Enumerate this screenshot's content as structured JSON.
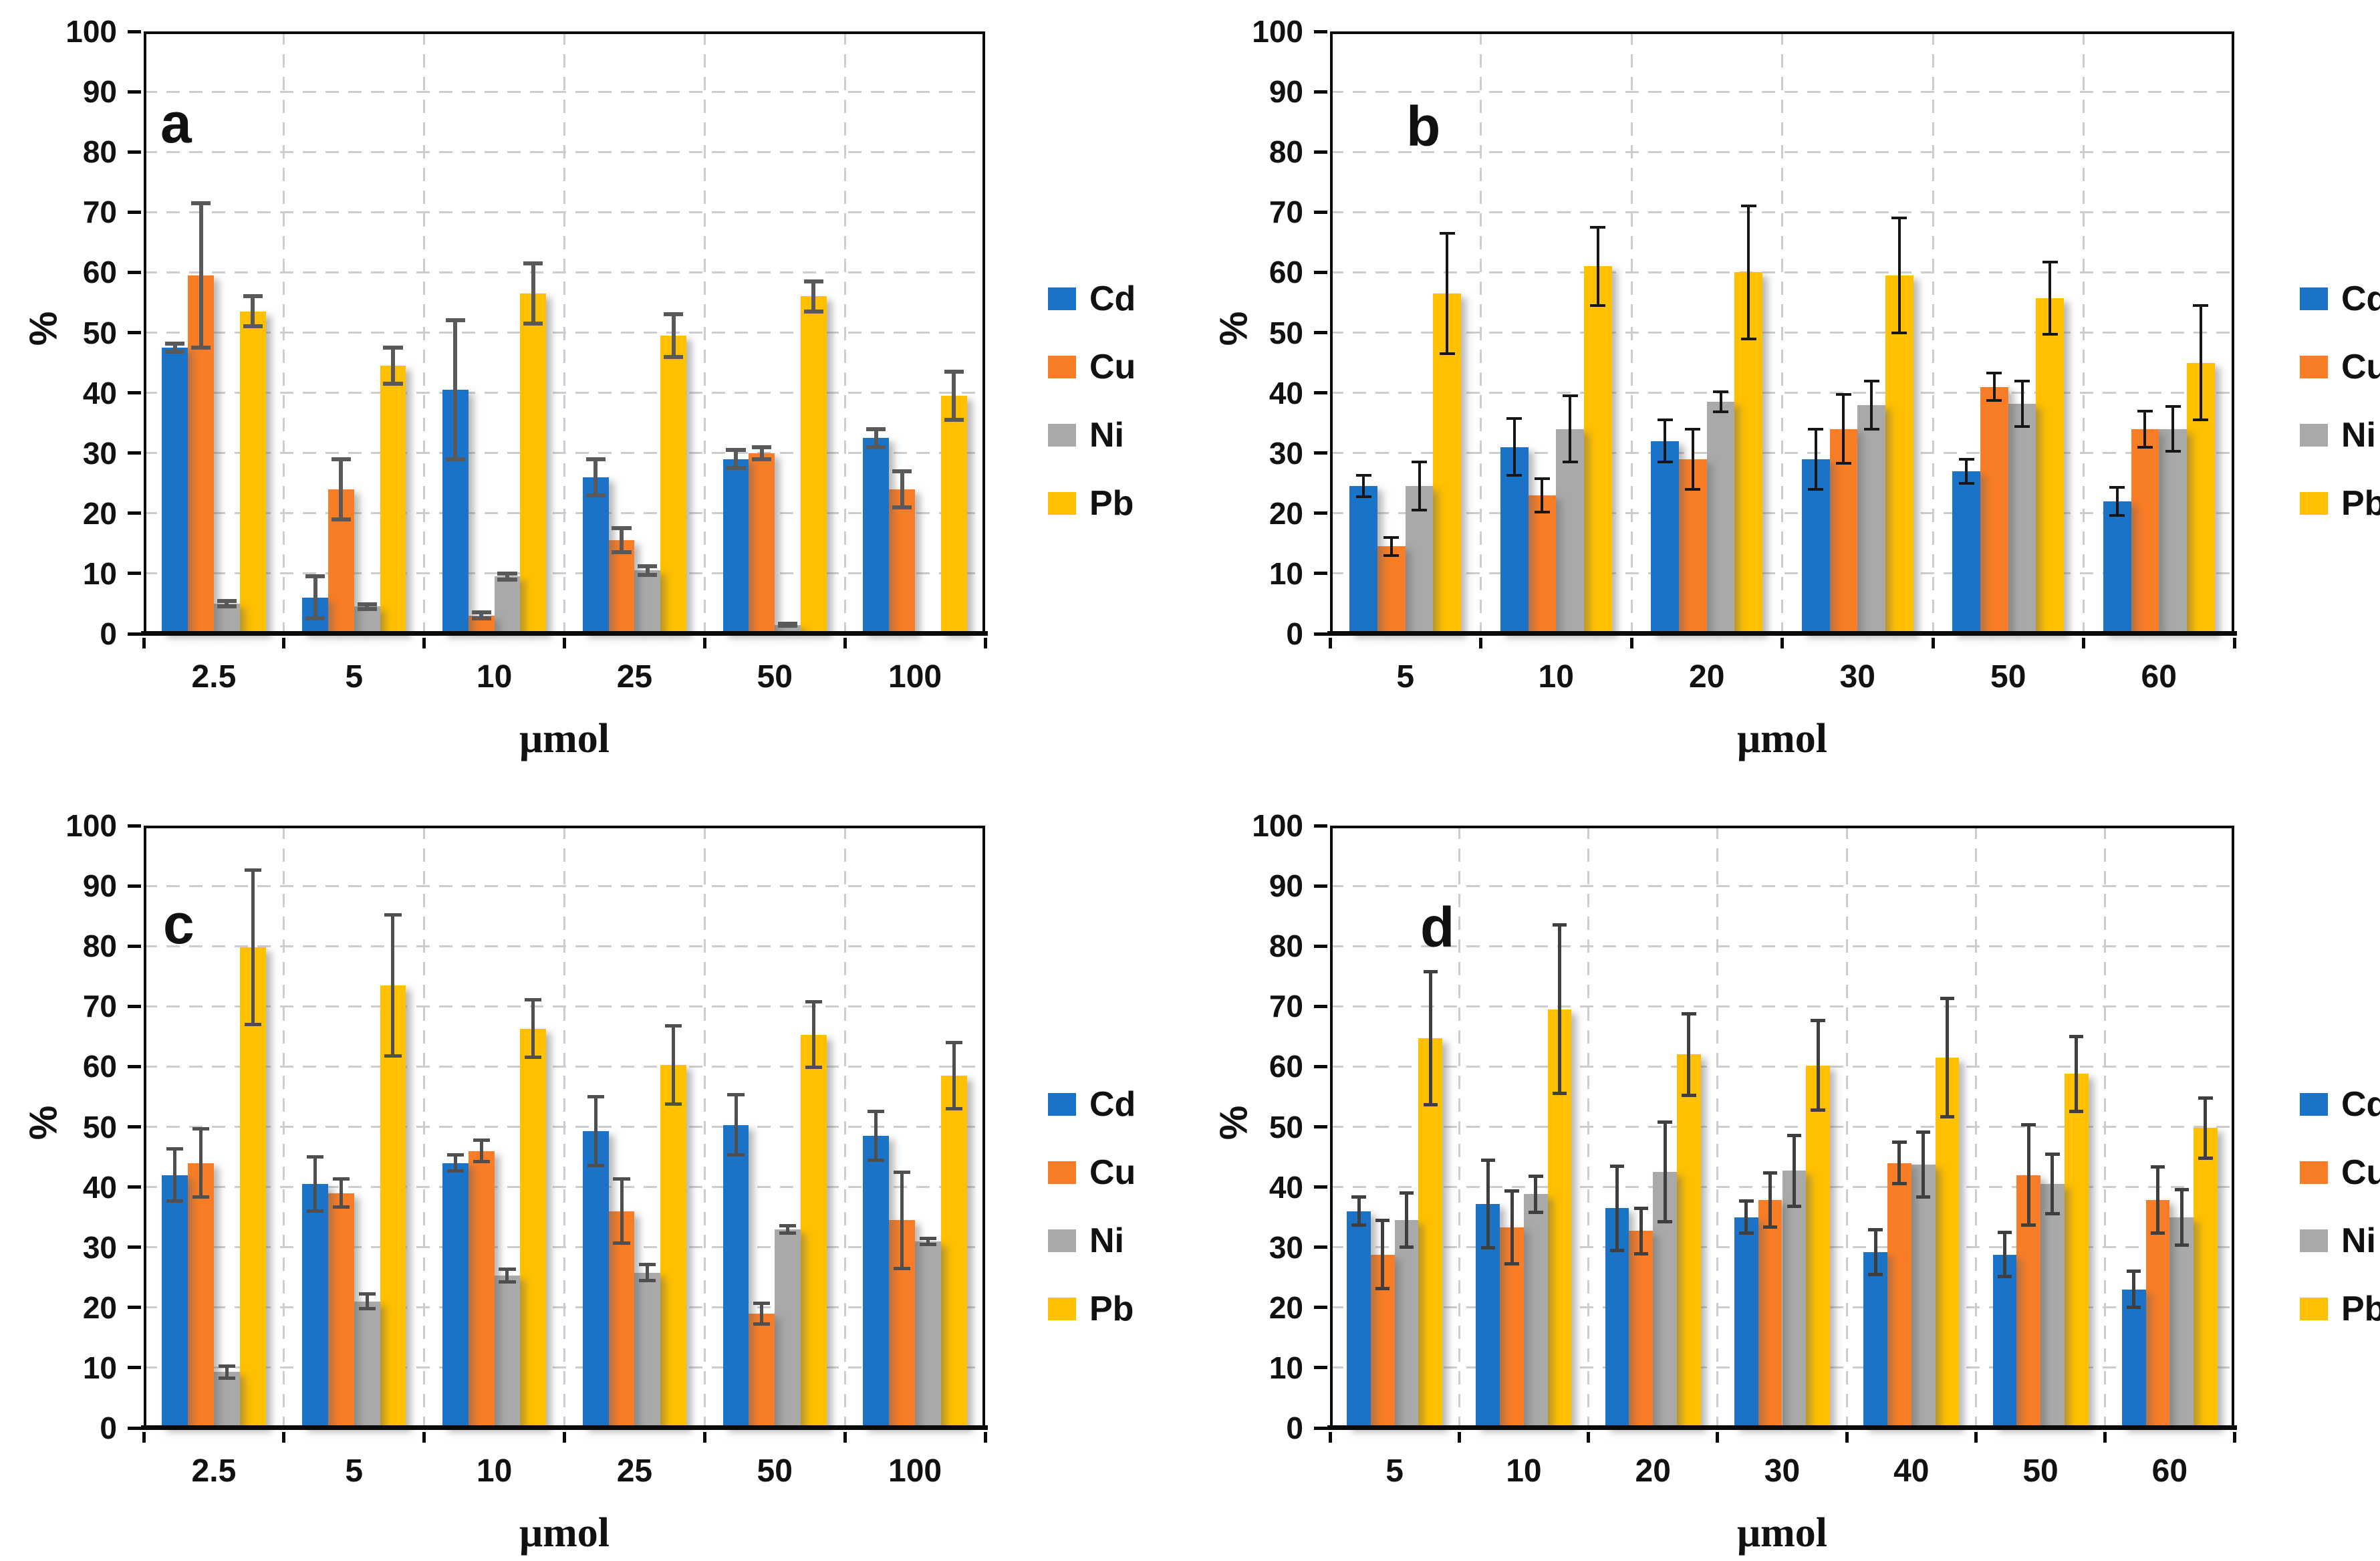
{
  "figure": {
    "background": "#FFFFFF"
  },
  "legend": [
    "Cd",
    "Cu",
    "Ni",
    "Pb"
  ],
  "series_colors": {
    "Cd": "#1B73C8",
    "Cu": "#F87D26",
    "Ni": "#A9A9A9",
    "Pb": "#FFC000"
  },
  "colors": {
    "axis": "#0B0B0B",
    "grid": "#CDCDCD",
    "text": "#111111"
  },
  "error_bar_styles": {
    "a": {
      "color": "#595959",
      "width": 6,
      "cap": 0.75
    },
    "b": {
      "color": "#161616",
      "width": 4,
      "cap": 0.55
    },
    "c": {
      "color": "#4F4F4F",
      "width": 5,
      "cap": 0.65
    },
    "d": {
      "color": "#3F3F3F",
      "width": 5,
      "cap": 0.6
    }
  },
  "chart_data": [
    {
      "panel": "a",
      "type": "bar",
      "title": "",
      "xlabel": "μmol",
      "ylabel": "%",
      "ylim": [
        0,
        100
      ],
      "ytick_step": 10,
      "grid": true,
      "legend_position": "right",
      "categories": [
        "2.5",
        "5",
        "10",
        "25",
        "50",
        "100"
      ],
      "series": [
        {
          "name": "Cd",
          "values": [
            47.5,
            6,
            40.5,
            26,
            29,
            32.5
          ],
          "errors": [
            0.7,
            3.5,
            11.5,
            3,
            1.5,
            1.5
          ]
        },
        {
          "name": "Cu",
          "values": [
            59.5,
            24,
            3,
            15.5,
            30,
            24
          ],
          "errors": [
            12,
            5,
            0.5,
            2,
            1,
            3
          ]
        },
        {
          "name": "Ni",
          "values": [
            5,
            4.5,
            9.5,
            10.5,
            1.5,
            0
          ],
          "errors": [
            0.4,
            0.4,
            0.5,
            0.7,
            0.2,
            0
          ]
        },
        {
          "name": "Pb",
          "values": [
            53.5,
            44.5,
            56.5,
            49.5,
            56,
            39.5
          ],
          "errors": [
            2.5,
            3,
            5,
            3.5,
            2.5,
            4
          ]
        }
      ]
    },
    {
      "panel": "b",
      "type": "bar",
      "title": "",
      "xlabel": "μmol",
      "ylabel": "%",
      "ylim": [
        0,
        100
      ],
      "ytick_step": 10,
      "grid": true,
      "legend_position": "right",
      "categories": [
        "5",
        "10",
        "20",
        "30",
        "50",
        "60"
      ],
      "series": [
        {
          "name": "Cd",
          "values": [
            24.5,
            31,
            32,
            29,
            27,
            22
          ],
          "errors": [
            1.8,
            4.7,
            3.5,
            5,
            2,
            2.3
          ]
        },
        {
          "name": "Cu",
          "values": [
            14.5,
            23,
            29,
            34,
            41,
            34
          ],
          "errors": [
            1.5,
            2.8,
            5,
            5.7,
            2.3,
            3
          ]
        },
        {
          "name": "Ni",
          "values": [
            24.5,
            34,
            38.5,
            38,
            38.2,
            34
          ],
          "errors": [
            4,
            5.5,
            1.7,
            4,
            3.8,
            3.7
          ]
        },
        {
          "name": "Pb",
          "values": [
            56.5,
            61,
            60,
            59.5,
            55.7,
            45
          ],
          "errors": [
            10,
            6.5,
            11,
            9.5,
            6,
            9.5
          ]
        }
      ]
    },
    {
      "panel": "c",
      "type": "bar",
      "title": "",
      "xlabel": "μmol",
      "ylabel": "%",
      "ylim": [
        0,
        100
      ],
      "ytick_step": 10,
      "grid": true,
      "legend_position": "right",
      "categories": [
        "2.5",
        "5",
        "10",
        "25",
        "50",
        "100"
      ],
      "series": [
        {
          "name": "Cd",
          "values": [
            42,
            40.5,
            44,
            49.3,
            50.3,
            48.5
          ],
          "errors": [
            4.3,
            4.5,
            1.3,
            5.7,
            5,
            4
          ]
        },
        {
          "name": "Cu",
          "values": [
            44,
            39,
            46,
            36,
            19,
            34.5
          ],
          "errors": [
            5.7,
            2.3,
            1.8,
            5.3,
            1.7,
            8
          ]
        },
        {
          "name": "Ni",
          "values": [
            9.3,
            21,
            25.3,
            25.8,
            33,
            31
          ],
          "errors": [
            1,
            1.2,
            1.1,
            1.3,
            0.6,
            0.5
          ]
        },
        {
          "name": "Pb",
          "values": [
            79.8,
            73.5,
            66.3,
            60.3,
            65.3,
            58.5
          ],
          "errors": [
            12.8,
            11.7,
            4.8,
            6.5,
            5.4,
            5.5
          ]
        }
      ]
    },
    {
      "panel": "d",
      "type": "bar",
      "title": "",
      "xlabel": "μmol",
      "ylabel": "%",
      "ylim": [
        0,
        100
      ],
      "ytick_step": 10,
      "grid": true,
      "legend_position": "right",
      "categories": [
        "5",
        "10",
        "20",
        "30",
        "40",
        "50",
        "60"
      ],
      "series": [
        {
          "name": "Cd",
          "values": [
            36,
            37.2,
            36.5,
            35,
            29.2,
            28.8,
            23
          ],
          "errors": [
            2.3,
            7.3,
            7,
            2.7,
            3.7,
            3.7,
            3
          ]
        },
        {
          "name": "Cu",
          "values": [
            28.8,
            33.3,
            32.7,
            37.8,
            44,
            42,
            37.8
          ],
          "errors": [
            5.7,
            6,
            3.8,
            4.5,
            3.4,
            8.3,
            5.5
          ]
        },
        {
          "name": "Ni",
          "values": [
            34.5,
            38.8,
            42.5,
            42.7,
            43.7,
            40.5,
            35
          ],
          "errors": [
            4.5,
            3,
            8.3,
            5.9,
            5.4,
            4.9,
            4.6
          ]
        },
        {
          "name": "Pb",
          "values": [
            64.7,
            69.5,
            62,
            60.2,
            61.5,
            58.8,
            49.8
          ],
          "errors": [
            11,
            14,
            6.8,
            7.4,
            9.8,
            6.2,
            5
          ]
        }
      ]
    }
  ]
}
